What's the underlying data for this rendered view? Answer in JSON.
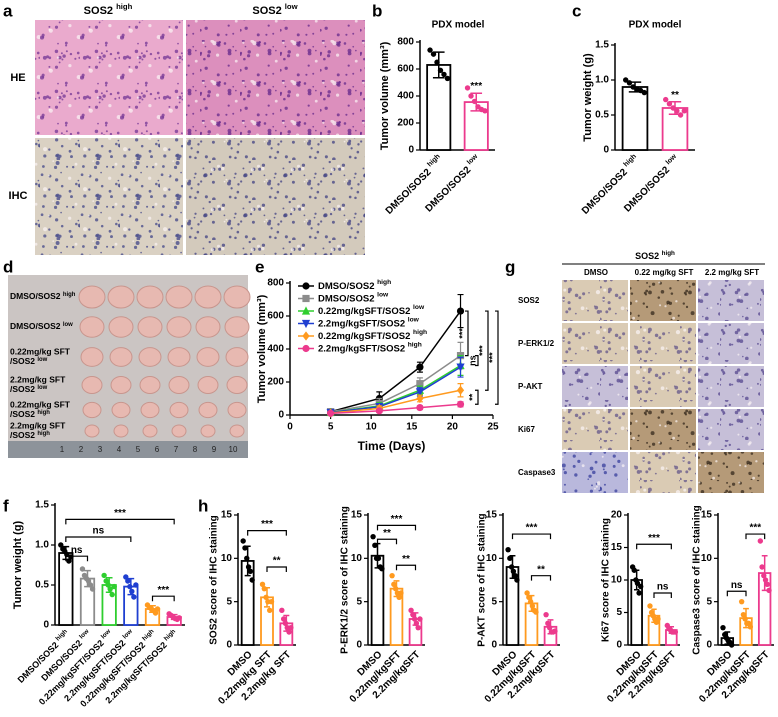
{
  "panel_labels": [
    "a",
    "b",
    "c",
    "d",
    "e",
    "f",
    "g",
    "h"
  ],
  "panel_a": {
    "columns": [
      "SOS2 high",
      "SOS2 low"
    ],
    "rows": [
      "HE",
      "IHC"
    ]
  },
  "panel_d": {
    "rows": [
      [
        "DMSO/SOS2 high"
      ],
      [
        "DMSO/SOS2 low"
      ],
      [
        "0.22mg/kg SFT",
        "/SOS2 low"
      ],
      [
        "2.2mg/kg SFT",
        "/SOS2 low"
      ],
      [
        "0.22mg/kg SFT",
        "/SOS2 high"
      ],
      [
        "2.2mg/kg SFT",
        "/SOS2 high"
      ]
    ],
    "ruler": [
      1,
      2,
      3,
      4,
      5,
      6,
      7,
      8,
      9,
      10
    ]
  },
  "panel_g": {
    "header": "SOS2 high",
    "columns": [
      "DMSO",
      "0.22 mg/kg SFT",
      "2.2 mg/kg SFT"
    ],
    "rows": [
      "SOS2",
      "P-ERK1/2",
      "P-AKT",
      "Ki67",
      "Caspase3"
    ]
  },
  "chart_data": [
    {
      "type": "bar",
      "title": "PDX model",
      "ylabel": "Tumor volume (mm³)",
      "categories": [
        "DMSO/SOS2 high",
        "DMSO/SOS2 low"
      ],
      "values": [
        630,
        355
      ],
      "errors": [
        95,
        65
      ],
      "points": [
        [
          740,
          710,
          650,
          590,
          560,
          530
        ],
        [
          460,
          400,
          360,
          320,
          300,
          290
        ]
      ],
      "colors": [
        "#000000",
        "#ec3a8d"
      ],
      "ylim": [
        0,
        800
      ],
      "yticks": [
        0,
        200,
        400,
        600,
        800
      ],
      "annotations": [
        "***"
      ]
    },
    {
      "type": "bar",
      "title": "PDX model",
      "ylabel": "Tumor weight (g)",
      "categories": [
        "DMSO/SOS2 high",
        "DMSO/SOS2 low"
      ],
      "values": [
        0.9,
        0.6
      ],
      "errors": [
        0.07,
        0.09
      ],
      "points": [
        [
          1.0,
          0.96,
          0.9,
          0.87,
          0.85,
          0.82
        ],
        [
          0.72,
          0.66,
          0.6,
          0.56,
          0.5,
          0.56
        ]
      ],
      "colors": [
        "#000000",
        "#ec3a8d"
      ],
      "ylim": [
        0,
        1.5
      ],
      "yticks": [
        0,
        0.5,
        {
          "value": 1,
          "label": "1.0"
        },
        1.5
      ],
      "annotations": [
        "**"
      ]
    },
    {
      "type": "line",
      "ylabel": "Tumor volume (mm³)",
      "xlabel": "Time (Days)",
      "x": [
        5,
        11,
        16,
        21
      ],
      "xlim": [
        0,
        25
      ],
      "xticks": [
        0,
        5,
        10,
        15,
        20,
        25
      ],
      "ylim": [
        0,
        800
      ],
      "yticks": [
        0,
        200,
        400,
        600,
        800
      ],
      "series": [
        {
          "name": "DMSO/SOS2 high",
          "color": "#000000",
          "marker": "circle",
          "values": [
            20,
            100,
            290,
            630
          ],
          "errors": [
            5,
            40,
            30,
            100
          ]
        },
        {
          "name": "DMSO/SOS2 low",
          "color": "#8c8c8c",
          "marker": "square",
          "values": [
            20,
            70,
            190,
            360
          ],
          "errors": [
            5,
            30,
            35,
            80
          ]
        },
        {
          "name": "0.22mg/kgSFT/SOS2 low",
          "color": "#2fce2f",
          "marker": "triangle",
          "values": [
            15,
            55,
            150,
            300
          ],
          "errors": [
            4,
            20,
            25,
            60
          ]
        },
        {
          "name": "2.2mg/kgSFT/SOS2 low",
          "color": "#1f3fd1",
          "marker": "triangle-down",
          "values": [
            15,
            50,
            140,
            290
          ],
          "errors": [
            4,
            20,
            25,
            60
          ]
        },
        {
          "name": "0.22mg/kgSFT/SOS2 high",
          "color": "#ff9a1f",
          "marker": "diamond",
          "values": [
            12,
            40,
            100,
            150
          ],
          "errors": [
            3,
            15,
            20,
            40
          ]
        },
        {
          "name": "2.2mg/kgSFT/SOS2 high",
          "color": "#ec3a8d",
          "marker": "circle",
          "values": [
            10,
            25,
            45,
            65
          ],
          "errors": [
            3,
            8,
            10,
            15
          ]
        }
      ],
      "annotations": [
        "***",
        "ns",
        "**",
        "***",
        "***"
      ]
    },
    {
      "type": "bar",
      "ylabel": "Tumor weight (g)",
      "categories": [
        "DMSO/SOS2 high",
        "DMSO/SOS2 low",
        "0.22mg/kgSFT/SOS2 low",
        "2.2mg/kgSFT/SOS2 low",
        "0.22mg/kgSFT/SOS2 high",
        "2.2mg/kgSFT/SOS2 high"
      ],
      "values": [
        0.9,
        0.58,
        0.5,
        0.48,
        0.2,
        0.1
      ],
      "errors": [
        0.08,
        0.1,
        0.09,
        0.1,
        0.04,
        0.03
      ],
      "points": [
        [
          1.0,
          0.95,
          0.92,
          0.88,
          0.8,
          0.85
        ],
        [
          0.7,
          0.62,
          0.58,
          0.55,
          0.5,
          0.45
        ],
        [
          0.62,
          0.55,
          0.5,
          0.45,
          0.38,
          0.48
        ],
        [
          0.6,
          0.55,
          0.48,
          0.42,
          0.35,
          0.5
        ],
        [
          0.25,
          0.22,
          0.2,
          0.18,
          0.15,
          0.2
        ],
        [
          0.14,
          0.12,
          0.1,
          0.08,
          0.07,
          0.09
        ]
      ],
      "colors": [
        "#000000",
        "#8c8c8c",
        "#2fce2f",
        "#1f3fd1",
        "#ff9a1f",
        "#ec3a8d"
      ],
      "ylim": [
        0,
        1.5
      ],
      "yticks": [
        0,
        0.5,
        {
          "value": 1,
          "label": "1.0"
        },
        1.5
      ],
      "annotations": [
        "***",
        "ns",
        "ns",
        "***"
      ]
    },
    {
      "type": "bar",
      "ylabel": "SOS2 score of IHC staining",
      "categories": [
        "DMSO",
        "0.22mg/kg SFT",
        "2.2mg/kg SFT"
      ],
      "values": [
        9.7,
        5.5,
        2.5
      ],
      "errors": [
        1.7,
        1.1,
        0.9
      ],
      "points": [
        [
          12,
          11.2,
          10,
          9,
          8.5,
          7.5
        ],
        [
          7,
          6.5,
          5.5,
          5,
          4,
          5
        ],
        [
          4,
          3,
          2.5,
          2,
          1.5,
          2
        ]
      ],
      "colors": [
        "#000000",
        "#ff9a1f",
        "#ec3a8d"
      ],
      "ylim": [
        0,
        15
      ],
      "yticks": [
        0,
        5,
        10,
        15
      ],
      "annotations": [
        "***",
        "**"
      ]
    },
    {
      "type": "bar",
      "ylabel": "P-ERK1/2 score of IHC staining",
      "categories": [
        "DMSO",
        "0.22mg/kgSFT",
        "2.2mg/kgSFT"
      ],
      "values": [
        10.3,
        6.5,
        3
      ],
      "errors": [
        1.4,
        0.9,
        0.7
      ],
      "points": [
        [
          12.5,
          11.5,
          10,
          10,
          9,
          8.8
        ],
        [
          8,
          7,
          6.5,
          6,
          5.5,
          6
        ],
        [
          4,
          3.5,
          3,
          2.5,
          2,
          3
        ]
      ],
      "colors": [
        "#000000",
        "#ff9a1f",
        "#ec3a8d"
      ],
      "ylim": [
        0,
        15
      ],
      "yticks": [
        0,
        5,
        10,
        15
      ],
      "annotations": [
        "***",
        "**",
        "**"
      ]
    },
    {
      "type": "bar",
      "ylabel": "P-AKT score of IHC staining",
      "categories": [
        "DMSO",
        "0.22mg/kgSFT",
        "2.2mg/kgSFT"
      ],
      "values": [
        9,
        4.8,
        2.1
      ],
      "errors": [
        1.3,
        0.9,
        0.8
      ],
      "points": [
        [
          11,
          10,
          9,
          8.5,
          8,
          7.5
        ],
        [
          6,
          5.5,
          5,
          4.5,
          4,
          3.8
        ],
        [
          3.5,
          2.5,
          2,
          1.5,
          1.5,
          1.6
        ]
      ],
      "colors": [
        "#000000",
        "#ff9a1f",
        "#ec3a8d"
      ],
      "ylim": [
        0,
        15
      ],
      "yticks": [
        0,
        5,
        10,
        15
      ],
      "annotations": [
        "***",
        "**"
      ]
    },
    {
      "type": "bar",
      "ylabel": "Ki67 score of IHC staining",
      "categories": [
        "DMSO",
        "0.22mg/kgSFT",
        "2.2mg/kgSFT"
      ],
      "values": [
        10,
        4.5,
        2.3
      ],
      "errors": [
        1.5,
        1,
        0.5
      ],
      "points": [
        [
          12,
          11.5,
          10,
          9.5,
          8,
          9
        ],
        [
          6,
          5,
          4.5,
          4,
          3.5,
          4
        ],
        [
          3,
          2.5,
          2.3,
          2,
          2,
          2
        ]
      ],
      "colors": [
        "#000000",
        "#ff9a1f",
        "#ec3a8d"
      ],
      "ylim": [
        0,
        20
      ],
      "yticks": [
        0,
        5,
        10,
        15,
        20
      ],
      "annotations": [
        "***",
        "ns"
      ]
    },
    {
      "type": "bar",
      "ylabel": "Caspase3 score of IHC staining",
      "categories": [
        "DMSO",
        "0.22mg/kgSFT",
        "2.2mg/kgSFT"
      ],
      "values": [
        0.8,
        3.1,
        8.3
      ],
      "errors": [
        0.7,
        1.1,
        2
      ],
      "points": [
        [
          2,
          1.2,
          0.8,
          0.5,
          0.3,
          0
        ],
        [
          5,
          3.5,
          3,
          2.5,
          2.5,
          2.1
        ],
        [
          12,
          9,
          8,
          7.5,
          7,
          6.3
        ]
      ],
      "colors": [
        "#000000",
        "#ff9a1f",
        "#ec3a8d"
      ],
      "ylim": [
        0,
        15
      ],
      "yticks": [
        0,
        5,
        10,
        15
      ],
      "annotations": [
        "ns",
        "***"
      ]
    }
  ]
}
